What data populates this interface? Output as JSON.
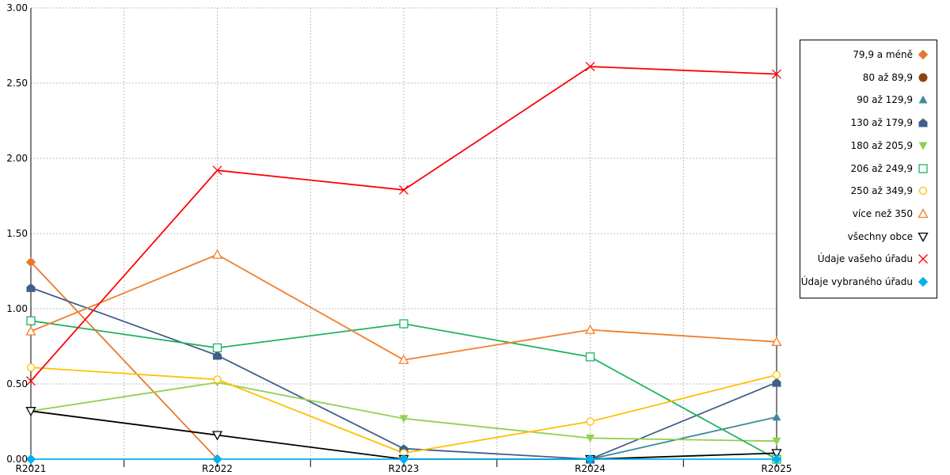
{
  "chart_data": {
    "type": "line",
    "categories": [
      "R2021",
      "R2022",
      "R2023",
      "R2024",
      "R2025"
    ],
    "ylim": [
      0,
      3
    ],
    "yticks": [
      "0.00",
      "0.50",
      "1.00",
      "1.50",
      "2.00",
      "2.50",
      "3.00"
    ],
    "grid": true,
    "legend_position": "right",
    "series": [
      {
        "name": "79,9 a méně",
        "color": "#e8772e",
        "marker": "diamond",
        "values": [
          1.31,
          0,
          null,
          null,
          null
        ]
      },
      {
        "name": "80 až 89,9",
        "color": "#8b4513",
        "marker": "circle-filled",
        "values": [
          null,
          null,
          null,
          null,
          null
        ]
      },
      {
        "name": "90 až 129,9",
        "color": "#3e8a9a",
        "marker": "triangle-filled",
        "values": [
          null,
          null,
          null,
          0,
          0.28
        ]
      },
      {
        "name": "130 až 179,9",
        "color": "#3f5f8a",
        "marker": "pentagon",
        "values": [
          1.14,
          0.69,
          0.07,
          0,
          0.51
        ]
      },
      {
        "name": "180 až 205,9",
        "color": "#92d050",
        "marker": "triangle-down-filled",
        "values": [
          0.32,
          0.51,
          0.27,
          0.14,
          0.12
        ]
      },
      {
        "name": "206 až 249,9",
        "color": "#1db35e",
        "marker": "square-open",
        "values": [
          0.92,
          0.74,
          0.9,
          0.68,
          0
        ]
      },
      {
        "name": "250 až 349,9",
        "color": "#ffc000",
        "marker": "circle-open",
        "values": [
          0.61,
          0.53,
          0.04,
          0.25,
          0.56
        ]
      },
      {
        "name": "více než 350",
        "color": "#f07f2a",
        "marker": "triangle-open",
        "values": [
          0.85,
          1.36,
          0.66,
          0.86,
          0.78
        ]
      },
      {
        "name": "všechny obce",
        "color": "#000000",
        "marker": "triangle-down-open",
        "values": [
          0.32,
          0.16,
          0,
          0,
          0.04
        ]
      },
      {
        "name": "Údaje vašeho úřadu",
        "color": "#ff0000",
        "marker": "x",
        "values": [
          0.52,
          1.92,
          1.79,
          2.61,
          2.56
        ]
      },
      {
        "name": "Údaje vybraného úřadu",
        "color": "#00b0f0",
        "marker": "diamond",
        "values": [
          0,
          0,
          0,
          0,
          0
        ]
      }
    ]
  }
}
